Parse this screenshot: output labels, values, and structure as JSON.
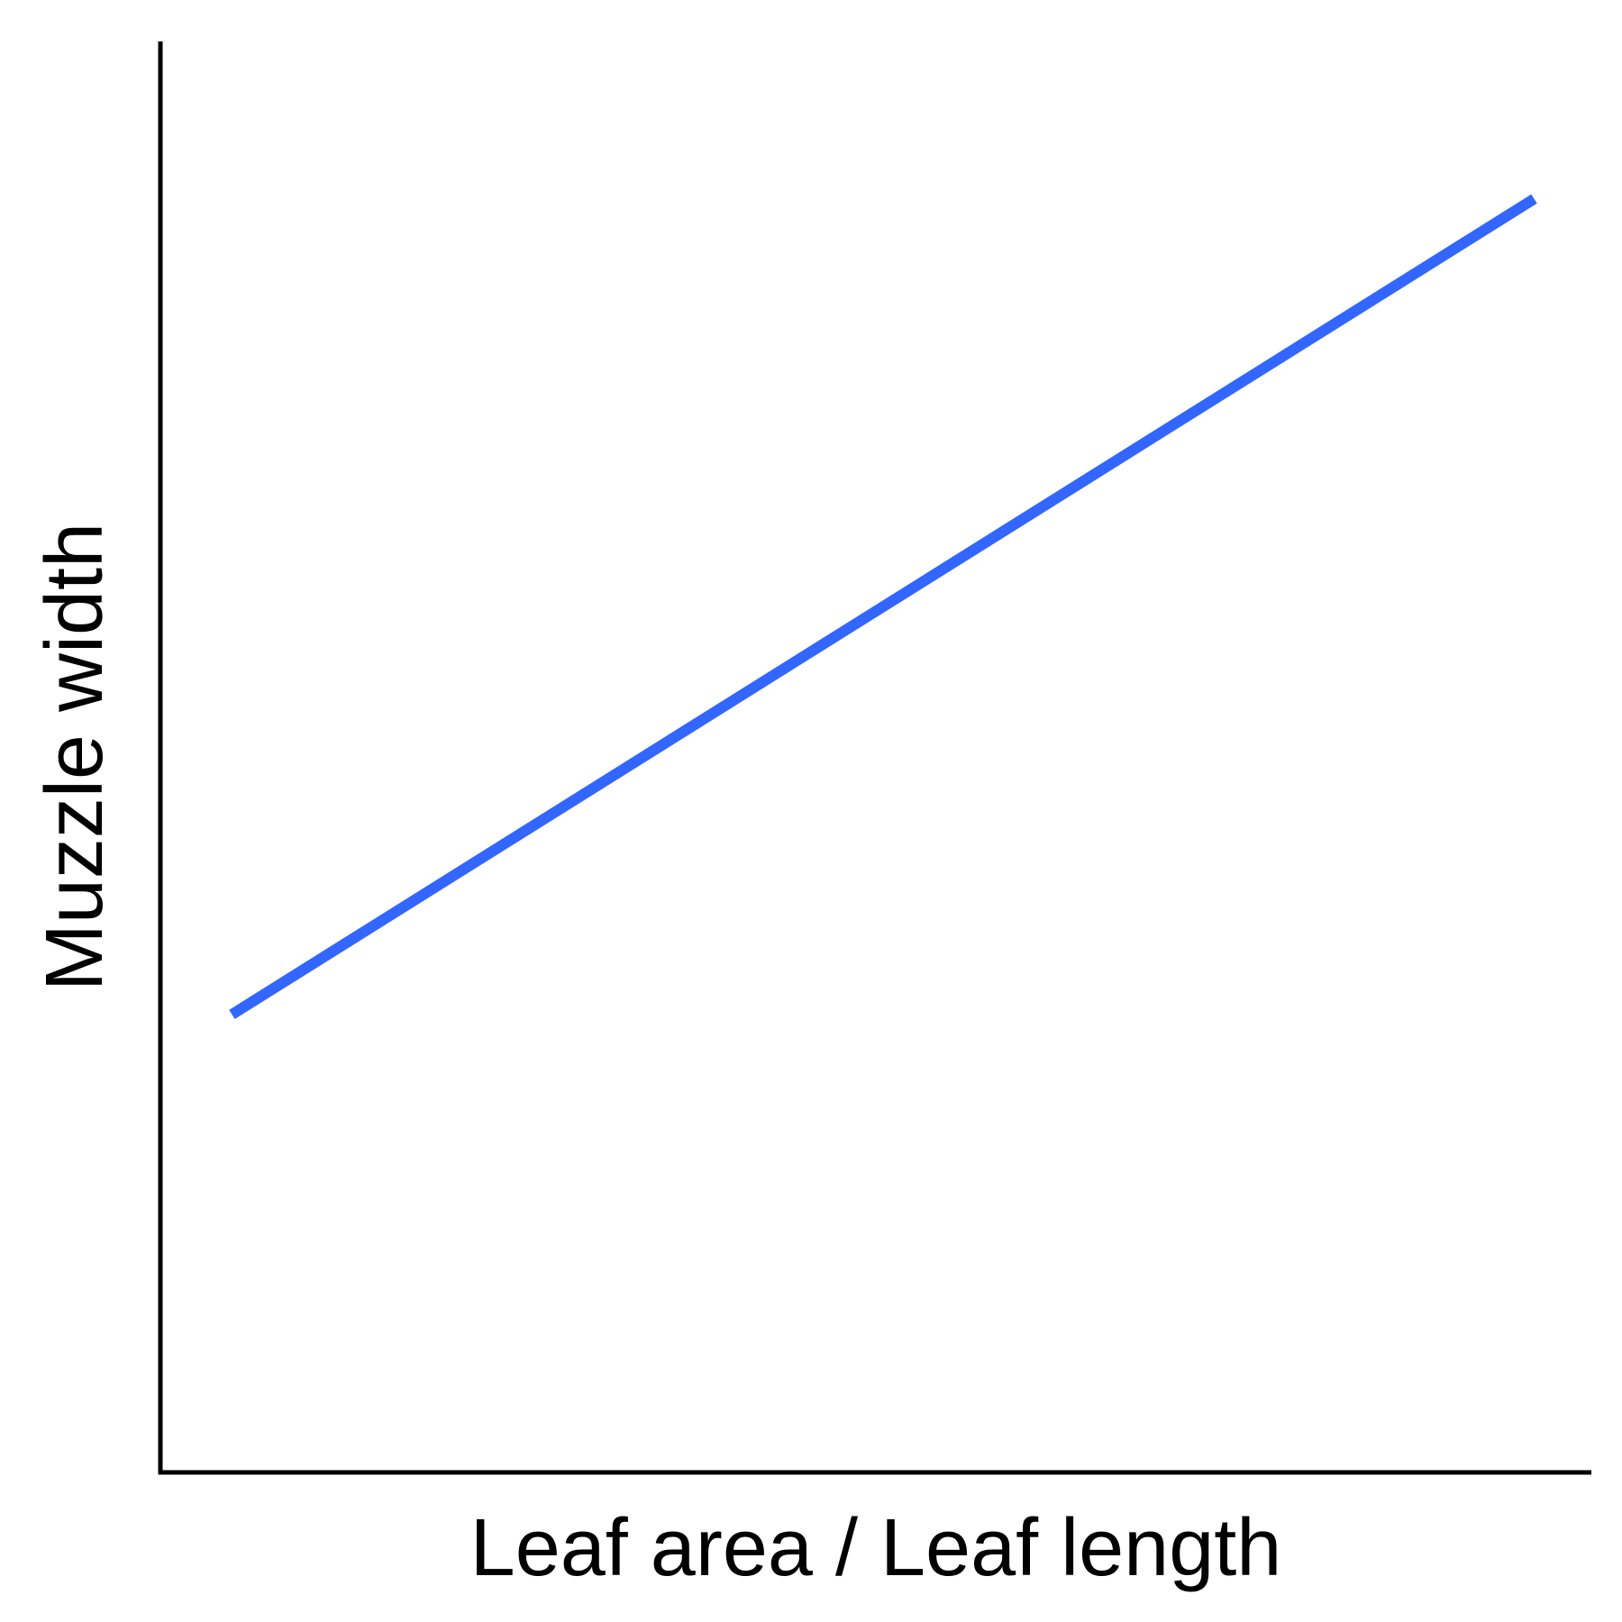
{
  "chart_data": {
    "type": "line",
    "title": "",
    "xlabel": "Leaf area / Leaf length",
    "ylabel": "Muzzle width",
    "xlim": [
      0,
      1
    ],
    "ylim": [
      0,
      1
    ],
    "grid": false,
    "legend": "none",
    "series": [
      {
        "color": "#3366ff",
        "x": [
          0.05,
          0.96
        ],
        "y": [
          0.32,
          0.89
        ]
      }
    ]
  }
}
